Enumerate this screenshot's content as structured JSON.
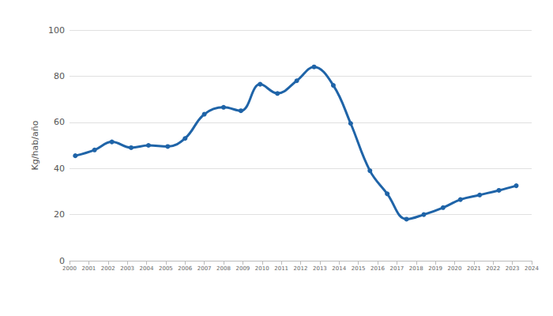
{
  "chart_data": {
    "type": "line",
    "y_label": "Kg/hab/año",
    "x": [
      2000.3,
      2001.3,
      2002.2,
      2003.2,
      2004.1,
      2005.1,
      2006.0,
      2007.0,
      2008.0,
      2008.9,
      2009.9,
      2010.8,
      2011.8,
      2012.7,
      2013.7,
      2014.6,
      2015.6,
      2016.5,
      2017.5,
      2018.4,
      2019.4,
      2020.3,
      2021.3,
      2022.3,
      2023.2
    ],
    "values": [
      45.5,
      48,
      51.5,
      49,
      50,
      49.5,
      53,
      63.5,
      66.5,
      65,
      76.5,
      72.5,
      78,
      84,
      76,
      59.5,
      39,
      29,
      18,
      20,
      23,
      26.5,
      28.5,
      30.5,
      32.5
    ],
    "color": "#1f64a8",
    "marker": "circle",
    "xlim": [
      2000,
      2024
    ],
    "xticks": [
      2000,
      2001,
      2002,
      2003,
      2004,
      2005,
      2006,
      2007,
      2008,
      2009,
      2010,
      2011,
      2012,
      2013,
      2014,
      2015,
      2016,
      2017,
      2018,
      2019,
      2020,
      2021,
      2022,
      2023,
      2024
    ],
    "ylim": [
      0,
      100
    ],
    "yticks": [
      0,
      20,
      40,
      60,
      80,
      100
    ],
    "grid": true
  }
}
